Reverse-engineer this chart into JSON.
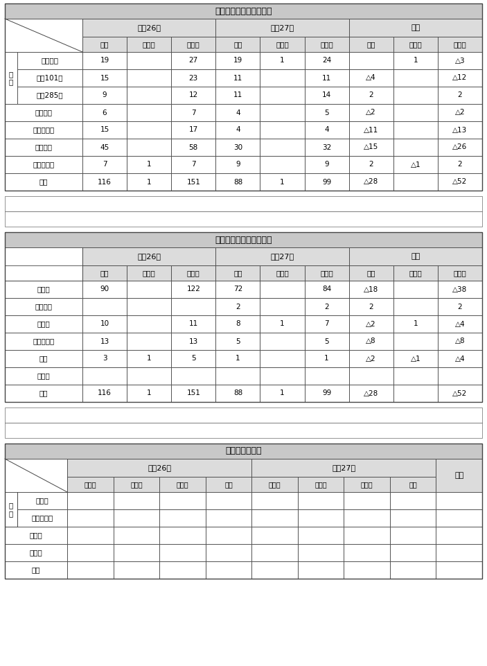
{
  "title1": "路線別交通事故発生状況",
  "title2": "類型別交通事故発生状況",
  "title3": "子供の被害事故",
  "gray_title": "#c8c8c8",
  "gray_header": "#dcdcdc",
  "border_color": "#444444",
  "table1_rows": [
    [
      "国道７号",
      "19",
      "",
      "27",
      "19",
      "1",
      "24",
      "",
      "1",
      "△3"
    ],
    [
      "国道101号",
      "15",
      "",
      "23",
      "11",
      "",
      "11",
      "△4",
      "",
      "△12"
    ],
    [
      "国道285号",
      "9",
      "",
      "12",
      "11",
      "",
      "14",
      "2",
      "",
      "2"
    ],
    [
      "主要県道",
      "6",
      "",
      "7",
      "4",
      "",
      "5",
      "△2",
      "",
      "△2"
    ],
    [
      "一般地方道",
      "15",
      "",
      "17",
      "4",
      "",
      "4",
      "△11",
      "",
      "△13"
    ],
    [
      "市町村道",
      "45",
      "",
      "58",
      "30",
      "",
      "32",
      "△15",
      "",
      "△26"
    ],
    [
      "その他道路",
      "7",
      "1",
      "7",
      "9",
      "",
      "9",
      "2",
      "△1",
      "2"
    ],
    [
      "総数",
      "116",
      "1",
      "151",
      "88",
      "1",
      "99",
      "△28",
      "",
      "△52"
    ]
  ],
  "table1_group_label": "国\n道",
  "table1_group_rows": 3,
  "table2_rows": [
    [
      "車－車",
      "90",
      "",
      "122",
      "72",
      "",
      "84",
      "△18",
      "",
      "△38"
    ],
    [
      "車－二輪",
      "",
      "",
      "",
      "2",
      "",
      "2",
      "2",
      "",
      "2"
    ],
    [
      "車－人",
      "10",
      "",
      "11",
      "8",
      "1",
      "7",
      "△2",
      "1",
      "△4"
    ],
    [
      "車－自転車",
      "13",
      "",
      "13",
      "5",
      "",
      "5",
      "△8",
      "",
      "△8"
    ],
    [
      "単独",
      "3",
      "1",
      "5",
      "1",
      "",
      "1",
      "△2",
      "△1",
      "△4"
    ],
    [
      "その他",
      "",
      "",
      "",
      "",
      "",
      "",
      "",
      "",
      ""
    ],
    [
      "総計",
      "116",
      "1",
      "151",
      "88",
      "1",
      "99",
      "△28",
      "",
      "△52"
    ]
  ],
  "table3_rows": [
    [
      "園　児",
      "",
      "",
      "",
      "",
      "",
      "",
      "",
      "",
      ""
    ],
    [
      "そ　の　他",
      "",
      "",
      "",
      "",
      "",
      "",
      "",
      "",
      ""
    ],
    [
      "小学生",
      "",
      "",
      "",
      "",
      "",
      "",
      "",
      "",
      ""
    ],
    [
      "中学生",
      "",
      "",
      "",
      "",
      "",
      "",
      "",
      "",
      ""
    ],
    [
      "総計",
      "",
      "",
      "",
      "",
      "",
      "",
      "",
      "",
      ""
    ]
  ],
  "table3_group_label": "園\n児",
  "table3_group_rows": 2,
  "subheaders_9": [
    "件数",
    "死者数",
    "傷者数",
    "件数",
    "死者数",
    "傷者数",
    "件数",
    "死者数",
    "傷者数"
  ],
  "subheaders_t3": [
    "歩行中",
    "自転車",
    "その他",
    "総数",
    "歩行中",
    "自転車",
    "その他",
    "総数"
  ]
}
